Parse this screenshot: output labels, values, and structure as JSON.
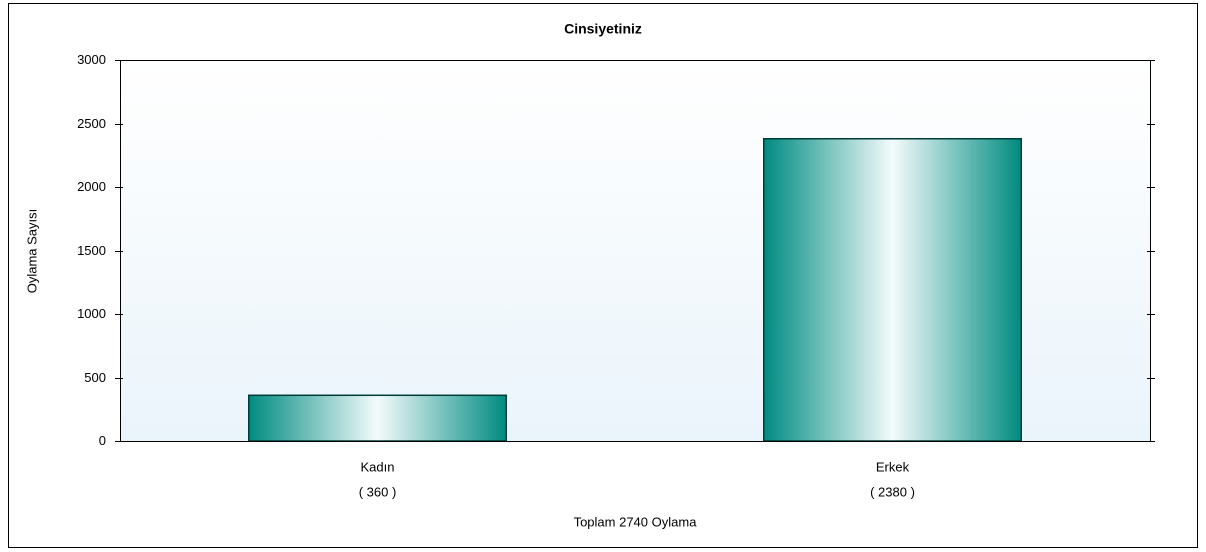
{
  "chart_data": {
    "type": "bar",
    "title": "Cinsiyetiniz",
    "y_label": "Oylama Sayısı",
    "x_label": "Toplam 2740 Oylama",
    "categories": [
      "Kadın",
      "Erkek"
    ],
    "values": [
      360,
      2380
    ],
    "value_labels": [
      "( 360 )",
      "( 2380 )"
    ],
    "color": "#008b80",
    "ylim": [
      0,
      3000
    ],
    "yticks": [
      0,
      500,
      1000,
      1500,
      2000,
      2500,
      3000
    ]
  }
}
